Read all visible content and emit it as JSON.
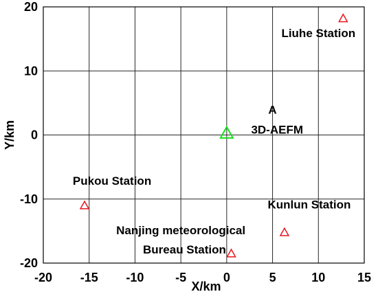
{
  "chart_data": {
    "type": "scatter",
    "title": "",
    "xlabel": "X/km",
    "ylabel": "Y/km",
    "xlim": [
      -20,
      15
    ],
    "ylim": [
      -20,
      20
    ],
    "xticks": [
      -20,
      -15,
      -10,
      -5,
      0,
      5,
      10,
      15
    ],
    "yticks": [
      -20,
      -10,
      0,
      10,
      20
    ],
    "xtick_labels": [
      "-20",
      "-15",
      "-10",
      "-5",
      "0",
      "5",
      "10",
      "15"
    ],
    "ytick_labels": [
      "-20",
      "-10",
      "0",
      "10",
      "20"
    ],
    "grid": true,
    "marker": "triangle",
    "points": [
      {
        "x": 12.7,
        "y": 18.2,
        "color": "#e8141b"
      },
      {
        "x": -15.5,
        "y": -11,
        "color": "#e8141b"
      },
      {
        "x": 6.3,
        "y": -15.2,
        "color": "#e8141b"
      },
      {
        "x": 0.5,
        "y": -18.5,
        "color": "#e8141b"
      },
      {
        "x": 0,
        "y": 0.3,
        "color": "#17e01a"
      }
    ],
    "annotations": [
      {
        "text": "Liuhe Station",
        "x": 10,
        "y": 15.3
      },
      {
        "text": "A",
        "x": 5,
        "y": 3.3
      },
      {
        "text": "3D-AEFM",
        "x": 5.5,
        "y": 0.2
      },
      {
        "text": "Pukou Station",
        "x": -12.5,
        "y": -7.8
      },
      {
        "text": "Kunlun Station",
        "x": 9,
        "y": -11.5
      },
      {
        "text": "Nanjing meteorological",
        "x": -5,
        "y": -15.5
      },
      {
        "text": "Bureau Station",
        "x": -4.6,
        "y": -18.5
      }
    ]
  }
}
